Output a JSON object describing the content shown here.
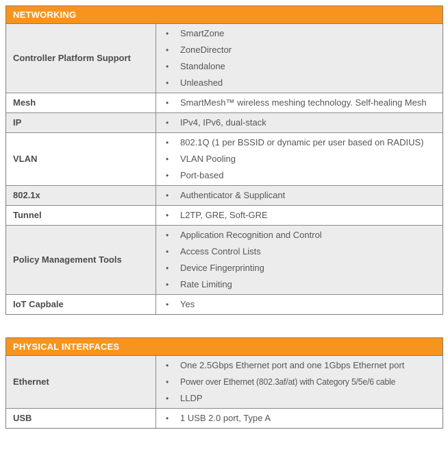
{
  "colors": {
    "header_bg": "#F7941E",
    "header_text": "#FFFFFF",
    "row_alt_bg": "#ECECEC",
    "row_bg": "#FFFFFF",
    "border": "#7D7E80",
    "label_text": "#4A4B4D",
    "body_text": "#55565A"
  },
  "sections": [
    {
      "title": "NETWORKING",
      "rows": [
        {
          "label": "Controller Platform Support",
          "items": [
            "SmartZone",
            "ZoneDirector",
            "Standalone",
            "Unleashed"
          ]
        },
        {
          "label": "Mesh",
          "items": [
            "SmartMesh™ wireless meshing technology. Self-healing Mesh"
          ]
        },
        {
          "label": "IP",
          "items": [
            "IPv4, IPv6, dual-stack"
          ]
        },
        {
          "label": "VLAN",
          "items": [
            "802.1Q (1 per BSSID or dynamic per user based on RADIUS)",
            "VLAN Pooling",
            "Port-based"
          ]
        },
        {
          "label": "802.1x",
          "items": [
            "Authenticator & Supplicant"
          ]
        },
        {
          "label": "Tunnel",
          "items": [
            "L2TP, GRE, Soft-GRE"
          ]
        },
        {
          "label": "Policy Management Tools",
          "items": [
            "Application Recognition and Control",
            "Access Control Lists",
            "Device Fingerprinting",
            "Rate Limiting"
          ]
        },
        {
          "label": "IoT Capbale",
          "items": [
            "Yes"
          ]
        }
      ]
    },
    {
      "title": "PHYSICAL INTERFACES",
      "rows": [
        {
          "label": "Ethernet",
          "items": [
            "One 2.5Gbps Ethernet port and one 1Gbps Ethernet port",
            "Power over Ethernet (802.3af/at) with Category 5/5e/6 cable",
            "LLDP"
          ]
        },
        {
          "label": "USB",
          "items": [
            "1 USB 2.0 port, Type A"
          ]
        }
      ]
    }
  ],
  "icons": {
    "bullet": "•"
  }
}
